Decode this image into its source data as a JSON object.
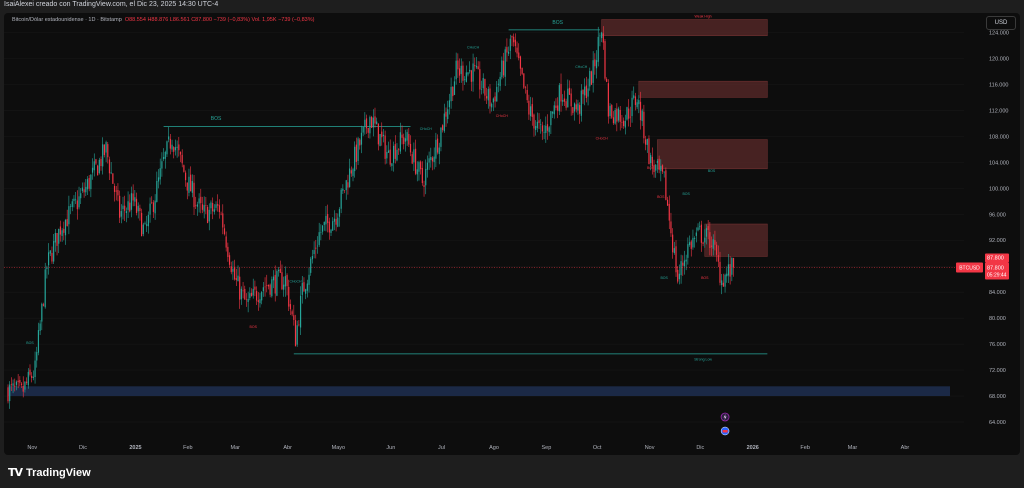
{
  "header": {
    "author_line": "IsaiAlexei creado con TradingView.com, el Dic 23, 2025 14:30 UTC-4"
  },
  "legend": {
    "title": "Bitcoin/Dólar estadounidense · 1D · Bitstamp",
    "open": "O88.554",
    "high": "H88.876",
    "low": "L86.561",
    "close": "C87.800",
    "change": "−739 (−0,83%)",
    "volume": "Vol. 1,95K",
    "vol_change": "−739 (−0,83%)"
  },
  "currency_button": "USD",
  "footer": {
    "brand": "TradingView",
    "logo": "TV"
  },
  "price_tags": {
    "symbol": "BTCUSD",
    "price": "87.800",
    "countdown": "05:29:44"
  },
  "colors": {
    "up": "#26a69a",
    "down": "#f23645",
    "zone_red": "#5b2a2a",
    "zone_blue": "#1d2c4d",
    "structure": "#26a69a"
  },
  "chart_data": {
    "type": "candlestick",
    "symbol": "BTCUSD",
    "x_tick_labels": [
      "Nov",
      "Dic",
      "2025",
      "Feb",
      "Mar",
      "Abr",
      "Mayo",
      "Jun",
      "Jul",
      "Ago",
      "Sep",
      "Oct",
      "Nov",
      "Dic",
      "2026",
      "Feb",
      "Mar",
      "Abr"
    ],
    "y_tick_labels": [
      "64.000",
      "68.000",
      "72.000",
      "76.000",
      "80.000",
      "84.000",
      "88.000",
      "92.000",
      "96.000",
      "100.000",
      "104.000",
      "108.000",
      "112.000",
      "116.000",
      "120.000",
      "124.000"
    ],
    "ylim": [
      62000,
      127000
    ],
    "last_price": 87800,
    "close_path": [
      [
        "Oct 20",
        69000
      ],
      [
        "Oct 28",
        68500
      ],
      [
        "Nov 5",
        72000
      ],
      [
        "Nov 12",
        88000
      ],
      [
        "Nov 20",
        94000
      ],
      [
        "Nov 28",
        97000
      ],
      [
        "Dic 5",
        100000
      ],
      [
        "Dic 17",
        106000
      ],
      [
        "Dic 25",
        96000
      ],
      [
        "Ene 2",
        98000
      ],
      [
        "Ene 9",
        93000
      ],
      [
        "Ene 20",
        104000
      ],
      [
        "Ene 25",
        108000
      ],
      [
        "Feb 3",
        101000
      ],
      [
        "Feb 12",
        96000
      ],
      [
        "Feb 22",
        97000
      ],
      [
        "Mar 3",
        86000
      ],
      [
        "Mar 10",
        82000
      ],
      [
        "Mar 20",
        85000
      ],
      [
        "Abr 2",
        86000
      ],
      [
        "Abr 8",
        77000
      ],
      [
        "Abr 12",
        84000
      ],
      [
        "Abr 22",
        93000
      ],
      [
        "May 2",
        96000
      ],
      [
        "May 12",
        104000
      ],
      [
        "May 22",
        111000
      ],
      [
        "Jun 2",
        105000
      ],
      [
        "Jun 12",
        108000
      ],
      [
        "Jun 22",
        101000
      ],
      [
        "Jul 2",
        108000
      ],
      [
        "Jul 12",
        118000
      ],
      [
        "Jul 22",
        118000
      ],
      [
        "Ago 2",
        113000
      ],
      [
        "Ago 14",
        123000
      ],
      [
        "Ago 24",
        112000
      ],
      [
        "Sep 1",
        108000
      ],
      [
        "Sep 12",
        115000
      ],
      [
        "Sep 22",
        112000
      ],
      [
        "Oct 1",
        118000
      ],
      [
        "Oct 6",
        125000
      ],
      [
        "Oct 10",
        112000
      ],
      [
        "Oct 20",
        111000
      ],
      [
        "Oct 27",
        114000
      ],
      [
        "Nov 4",
        104000
      ],
      [
        "Nov 12",
        101000
      ],
      [
        "Nov 20",
        86000
      ],
      [
        "Nov 26",
        91000
      ],
      [
        "Dic 3",
        93000
      ],
      [
        "Dic 10",
        92000
      ],
      [
        "Dic 16",
        86000
      ],
      [
        "Dic 23",
        87800
      ]
    ],
    "zones_red": [
      {
        "from": "Oct 6",
        "to": "2026 Ene 12",
        "low": 123500,
        "high": 126000
      },
      {
        "from": "Oct 28",
        "to": "2026 Ene 12",
        "low": 114000,
        "high": 116500
      },
      {
        "from": "Nov 8",
        "to": "2026 Ene 12",
        "low": 103000,
        "high": 107500
      },
      {
        "from": "Dic 6",
        "to": "2026 Ene 12",
        "low": 89500,
        "high": 94500
      }
    ],
    "zones_blue": [
      {
        "from": "Oct 20",
        "to": "2026 Abr 30",
        "low": 68000,
        "high": 69500
      }
    ],
    "lines": [
      {
        "label": "BOS",
        "from": "Ene 20",
        "to": "Jun 15",
        "price": 109500
      },
      {
        "label": "BOS",
        "from": "Ago 12",
        "to": "Oct 5",
        "price": 124400
      },
      {
        "label": "",
        "from": "Abr 7",
        "to": "2026 Ene 12",
        "price": 74500
      }
    ],
    "annotations": [
      {
        "text": "BOS",
        "x": "Feb 20",
        "price": 110500,
        "color": "#26a69a"
      },
      {
        "text": "BOS",
        "x": "Sep 10",
        "price": 125300,
        "color": "#26a69a"
      },
      {
        "text": "Weak High",
        "x": "Dic 5",
        "price": 126300,
        "color": "#f23645"
      },
      {
        "text": "Strong Low",
        "x": "Dic 5",
        "price": 73500,
        "color": "#26a69a"
      },
      {
        "text": "BOS",
        "x": "Nov 2",
        "price": 76000,
        "color": "#26a69a"
      },
      {
        "text": "BOS",
        "x": "Nov 12",
        "price": 86000,
        "color": "#26a69a"
      },
      {
        "text": "BOS",
        "x": "Nov 25",
        "price": 99000,
        "color": "#26a69a"
      },
      {
        "text": "BOS",
        "x": "Dic 10",
        "price": 102500,
        "color": "#26a69a"
      },
      {
        "text": "BOS",
        "x": "Mar 14",
        "price": 78500,
        "color": "#f23645"
      },
      {
        "text": "BOS",
        "x": "Nov 4",
        "price": 103000,
        "color": "#f23645"
      },
      {
        "text": "BOS",
        "x": "Nov 10",
        "price": 98500,
        "color": "#f23645"
      },
      {
        "text": "BOS",
        "x": "Dic 6",
        "price": 86000,
        "color": "#f23645"
      },
      {
        "text": "CHoCH",
        "x": "Jun 24",
        "price": 109000,
        "color": "#26a69a"
      },
      {
        "text": "CHoCH",
        "x": "Jul 22",
        "price": 121500,
        "color": "#26a69a"
      },
      {
        "text": "CHoCH",
        "x": "Sep 24",
        "price": 118500,
        "color": "#26a69a"
      },
      {
        "text": "CHoCH",
        "x": "Ago 8",
        "price": 111000,
        "color": "#f23645"
      },
      {
        "text": "CHoCH",
        "x": "Oct 6",
        "price": 107500,
        "color": "#f23645"
      },
      {
        "text": "CHoCH",
        "x": "Abr 8",
        "price": 85500,
        "color": "#26a69a"
      }
    ]
  }
}
